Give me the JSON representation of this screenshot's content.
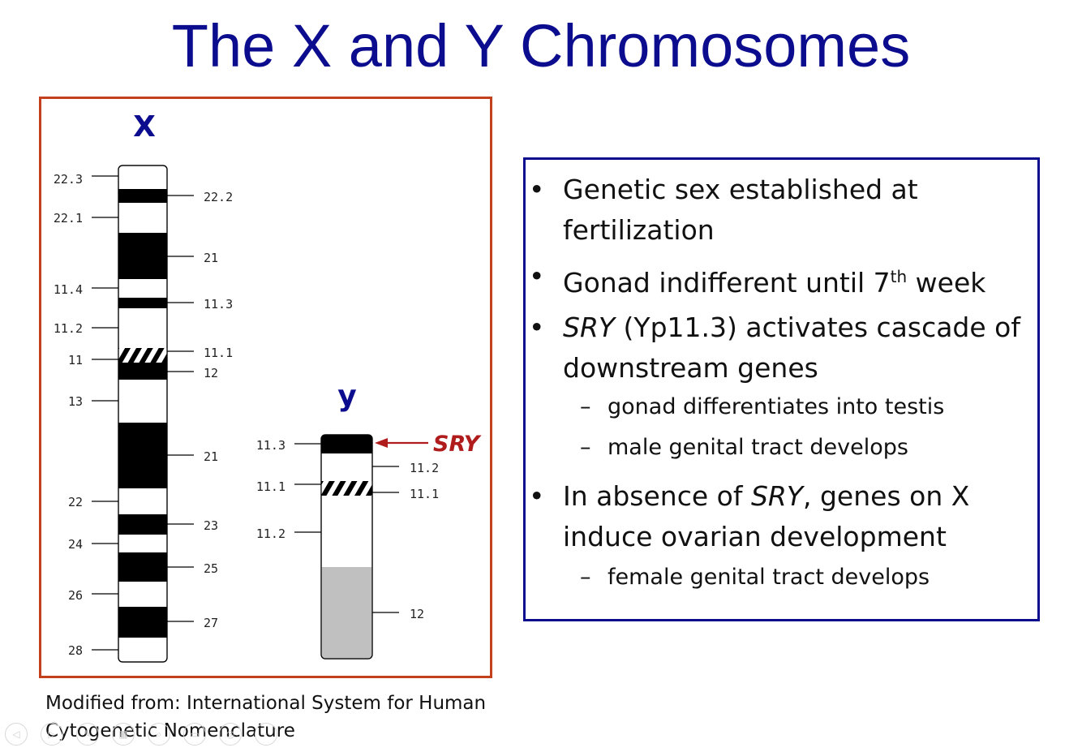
{
  "title": "The X and Y Chromosomes",
  "diagram": {
    "x_label": "X",
    "y_label": "y",
    "sry_label": "SRY",
    "x_left_bands": [
      "22.3",
      "22.1",
      "11.4",
      "11.2",
      "11",
      "13",
      "22",
      "24",
      "26",
      "28"
    ],
    "x_right_bands": [
      "22.2",
      "21",
      "11.3",
      "11.1",
      "12",
      "21",
      "23",
      "25",
      "27"
    ],
    "y_left_bands": [
      "11.3",
      "11.1",
      "11.2"
    ],
    "y_right_bands": [
      "11.2",
      "11.1",
      "12"
    ]
  },
  "source": {
    "line1": "Modified from: International System for Human",
    "line2": "Cytogenetic Nomenclature"
  },
  "bullets": {
    "b1_line1": "Genetic sex established at",
    "b1_line2": "fertilization",
    "b2_pre": "Gonad indifferent until 7",
    "b2_sup": "th",
    "b2_post": " week",
    "b3_italic": "SRY",
    "b3_line1": " (Yp11.3) activates cascade of",
    "b3_line2": "downstream genes",
    "b3_sub1": "gonad differentiates into testis",
    "b3_sub2": "male genital tract develops",
    "b4_pre": "In absence of ",
    "b4_italic": "SRY",
    "b4_line1": ", genes on X",
    "b4_line2": "induce ovarian development",
    "b4_sub1": "female genital tract develops"
  },
  "bullet_char": "•",
  "dash_char": "–"
}
